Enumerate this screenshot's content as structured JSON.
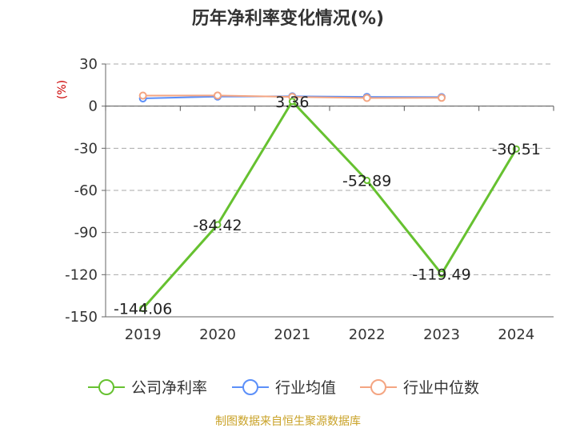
{
  "chart_data": {
    "type": "line",
    "title": "历年净利率变化情况(%)",
    "unit_label": "(%)",
    "categories": [
      "2019",
      "2020",
      "2021",
      "2022",
      "2023",
      "2024"
    ],
    "ylim": [
      -150,
      30
    ],
    "yticks": [
      30,
      0,
      -30,
      -60,
      -90,
      -120,
      -150
    ],
    "grid": true,
    "legend_position": "bottom",
    "series": [
      {
        "name": "公司净利率",
        "color": "#66c130",
        "values": [
          -144.06,
          -84.42,
          3.36,
          -52.89,
          -119.49,
          -30.51
        ],
        "labels": [
          "-144.06",
          "-84.42",
          "3.36",
          "-52.89",
          "-119.49",
          "-30.51"
        ]
      },
      {
        "name": "行业均值",
        "color": "#5b8ff9",
        "values": [
          5.5,
          6.8,
          7.0,
          6.6,
          6.4,
          null
        ]
      },
      {
        "name": "行业中位数",
        "color": "#f4a582",
        "values": [
          7.5,
          7.6,
          6.6,
          5.8,
          5.9,
          null
        ]
      }
    ]
  },
  "source": "制图数据来自恒生聚源数据库"
}
